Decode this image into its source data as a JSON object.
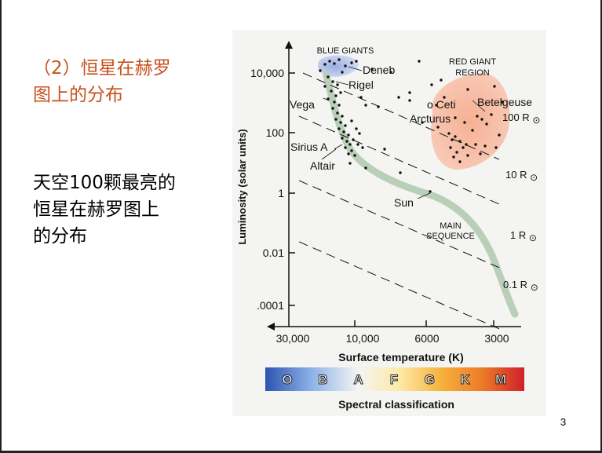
{
  "slide": {
    "heading_lines": [
      "（2）恒星在赫罗",
      "图上的分布"
    ],
    "body_lines": [
      "天空100颗最亮的",
      "恒星在赫罗图上",
      "的分布"
    ],
    "page_number": "3"
  },
  "chart_data": {
    "type": "scatter",
    "title": "",
    "xlabel": "Surface temperature (K)",
    "ylabel": "Luminosity (solar units)",
    "x_axis_reversed": true,
    "x_ticks": [
      "30,000",
      "10,000",
      "6000",
      "3000"
    ],
    "y_ticks": [
      "10,000",
      "100",
      "1",
      "0.01",
      ".0001"
    ],
    "y_scale": "log",
    "region_labels": [
      {
        "id": "blue-giants",
        "text": "BLUE GIANTS"
      },
      {
        "id": "red-giant-region-1",
        "text": "RED GIANT"
      },
      {
        "id": "red-giant-region-2",
        "text": "REGION"
      },
      {
        "id": "main-sequence-1",
        "text": "MAIN"
      },
      {
        "id": "main-sequence-2",
        "text": "SEQUENCE"
      }
    ],
    "stars": [
      {
        "name": "Deneb"
      },
      {
        "name": "Rigel"
      },
      {
        "name": "Vega"
      },
      {
        "name": "Sirius A"
      },
      {
        "name": "Altair"
      },
      {
        "name": "Sun"
      },
      {
        "name": "o Ceti"
      },
      {
        "name": "Arcturus"
      },
      {
        "name": "Betelgeuse"
      }
    ],
    "radius_lines": [
      "100 R",
      "10 R",
      "1 R",
      "0.1 R"
    ],
    "radius_symbol": "⊙",
    "spectral_classes": [
      "O",
      "B",
      "A",
      "F",
      "G",
      "K",
      "M"
    ],
    "spectral_label": "Spectral classification",
    "colors": {
      "blue_giants_region": "#a9b9e6",
      "red_giants_region": "#f5a98c",
      "main_sequence_band": "#b9cfb7",
      "spectral_gradient": [
        "#2a55b0",
        "#8fb2e8",
        "#f4f4f4",
        "#fde9a6",
        "#f6b23c",
        "#ec7a28",
        "#d0202a"
      ]
    }
  }
}
